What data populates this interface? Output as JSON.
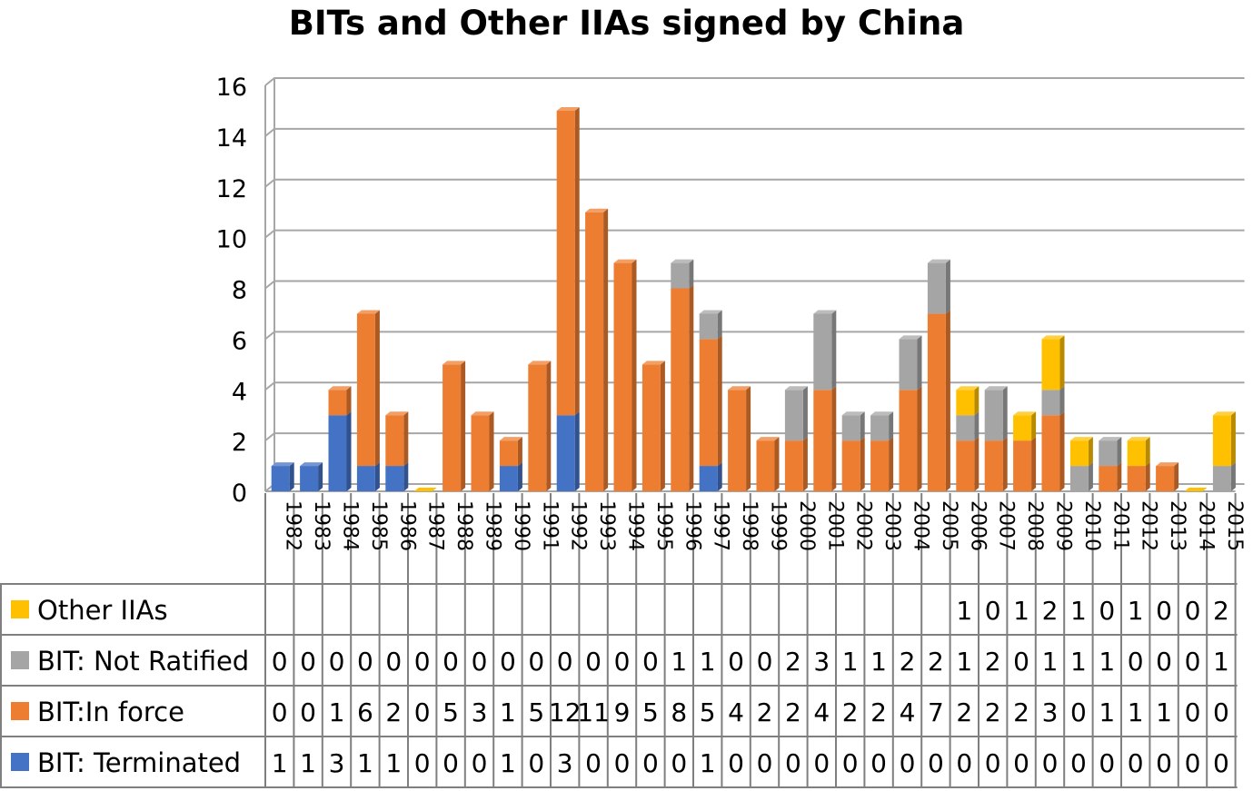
{
  "chart_data": {
    "type": "bar",
    "stacked": true,
    "title": "BITs and Other IIAs signed by China",
    "categories": [
      "1982",
      "1983",
      "1984",
      "1985",
      "1986",
      "1987",
      "1988",
      "1989",
      "1990",
      "1991",
      "1992",
      "1993",
      "1994",
      "1995",
      "1996",
      "1997",
      "1998",
      "1999",
      "2000",
      "2001",
      "2002",
      "2003",
      "2004",
      "2005",
      "2006",
      "2007",
      "2008",
      "2009",
      "2010",
      "2011",
      "2012",
      "2013",
      "2014",
      "2015"
    ],
    "ylim": [
      0,
      16
    ],
    "yticks": [
      0,
      2,
      4,
      6,
      8,
      10,
      12,
      14,
      16
    ],
    "grid": true,
    "legend": "data-table-left",
    "series": [
      {
        "name": "BIT: Terminated",
        "color": "#4472C4",
        "values": [
          1,
          1,
          3,
          1,
          1,
          0,
          0,
          0,
          1,
          0,
          3,
          0,
          0,
          0,
          0,
          1,
          0,
          0,
          0,
          0,
          0,
          0,
          0,
          0,
          0,
          0,
          0,
          0,
          0,
          0,
          0,
          0,
          0,
          0
        ],
        "table_values": [
          "1",
          "1",
          "3",
          "1",
          "1",
          "0",
          "0",
          "0",
          "1",
          "0",
          "3",
          "0",
          "0",
          "0",
          "0",
          "1",
          "0",
          "0",
          "0",
          "0",
          "0",
          "0",
          "0",
          "0",
          "0",
          "0",
          "0",
          "0",
          "0",
          "0",
          "0",
          "0",
          "0",
          "0"
        ]
      },
      {
        "name": "BIT:In force",
        "color": "#ED7D31",
        "values": [
          0,
          0,
          1,
          6,
          2,
          0,
          5,
          3,
          1,
          5,
          12,
          11,
          9,
          5,
          8,
          5,
          4,
          2,
          2,
          4,
          2,
          2,
          4,
          7,
          2,
          2,
          2,
          3,
          0,
          1,
          1,
          1,
          0,
          0
        ],
        "table_values": [
          "0",
          "0",
          "1",
          "6",
          "2",
          "0",
          "5",
          "3",
          "1",
          "5",
          "12",
          "11",
          "9",
          "5",
          "8",
          "5",
          "4",
          "2",
          "2",
          "4",
          "2",
          "2",
          "4",
          "7",
          "2",
          "2",
          "2",
          "3",
          "0",
          "1",
          "1",
          "1",
          "0",
          "0"
        ]
      },
      {
        "name": "BIT: Not Ratified",
        "color": "#A5A5A5",
        "values": [
          0,
          0,
          0,
          0,
          0,
          0,
          0,
          0,
          0,
          0,
          0,
          0,
          0,
          0,
          1,
          1,
          0,
          0,
          2,
          3,
          1,
          1,
          2,
          2,
          1,
          2,
          0,
          1,
          1,
          1,
          0,
          0,
          0,
          1
        ],
        "table_values": [
          "0",
          "0",
          "0",
          "0",
          "0",
          "0",
          "0",
          "0",
          "0",
          "0",
          "0",
          "0",
          "0",
          "0",
          "1",
          "1",
          "0",
          "0",
          "2",
          "3",
          "1",
          "1",
          "2",
          "2",
          "1",
          "2",
          "0",
          "1",
          "1",
          "1",
          "0",
          "0",
          "0",
          "1"
        ]
      },
      {
        "name": "Other IIAs",
        "color": "#FFC000",
        "values": [
          0,
          0,
          0,
          0,
          0,
          0,
          0,
          0,
          0,
          0,
          0,
          0,
          0,
          0,
          0,
          0,
          0,
          0,
          0,
          0,
          0,
          0,
          0,
          0,
          1,
          0,
          1,
          2,
          1,
          0,
          1,
          0,
          0,
          2
        ],
        "table_values": [
          "",
          "",
          "",
          "",
          "",
          "",
          "",
          "",
          "",
          "",
          "",
          "",
          "",
          "",
          "",
          "",
          "",
          "",
          "",
          "",
          "",
          "",
          "",
          "",
          "1",
          "0",
          "1",
          "2",
          "1",
          "0",
          "1",
          "0",
          "0",
          "2"
        ]
      }
    ]
  }
}
